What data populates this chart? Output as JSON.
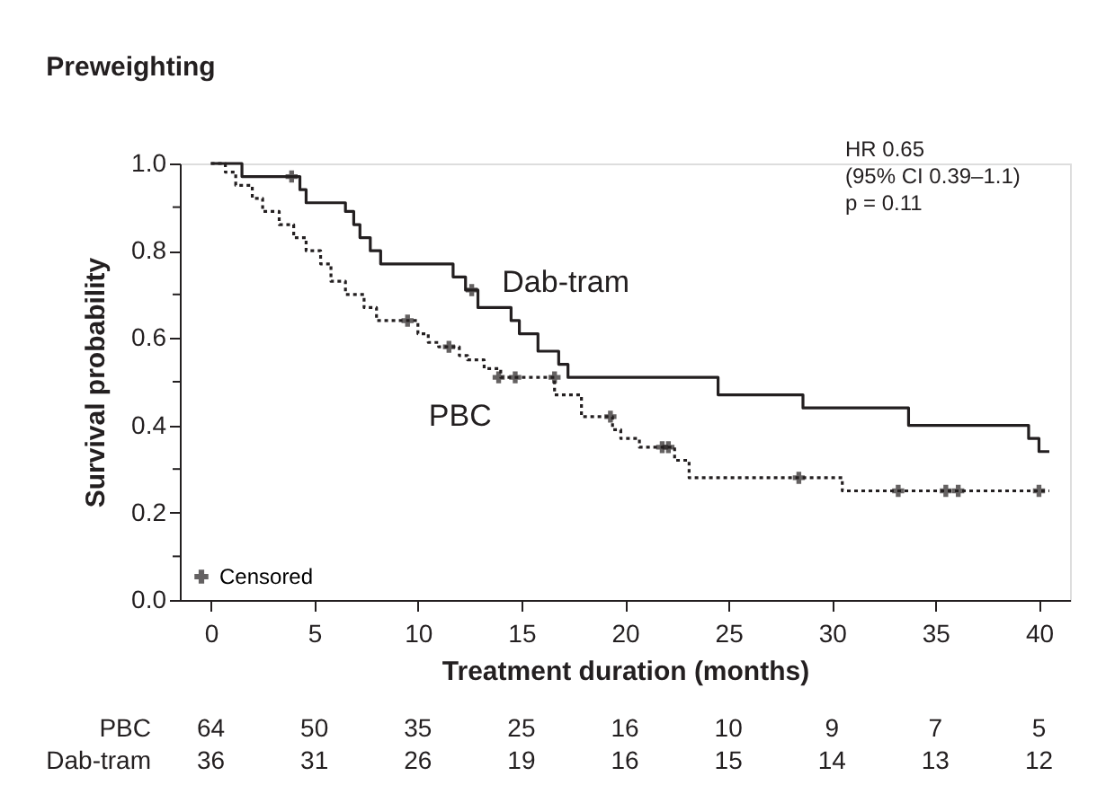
{
  "chart_data": {
    "type": "step",
    "title": "Preweighting",
    "xlabel": "Treatment duration (months)",
    "ylabel": "Survival probability",
    "xlim": [
      -1.5,
      41.5
    ],
    "xticks": [
      0,
      5,
      10,
      15,
      20,
      25,
      30,
      35,
      40
    ],
    "ylim": [
      0,
      1.0
    ],
    "yticks": [
      {
        "value": 0,
        "label": "0.0"
      },
      {
        "value": 0.1,
        "label": null
      },
      {
        "value": 0.2,
        "label": "0.2"
      },
      {
        "value": 0.3,
        "label": null
      },
      {
        "value": 0.4,
        "label": "0.4"
      },
      {
        "value": 0.5,
        "label": null
      },
      {
        "value": 0.6,
        "label": "0.6"
      },
      {
        "value": 0.7,
        "label": null
      },
      {
        "value": 0.8,
        "label": "0.8"
      },
      {
        "value": 0.9,
        "label": null
      },
      {
        "value": 1.0,
        "label": "1.0"
      }
    ],
    "grid": false,
    "legend": "bottom left",
    "series": [
      {
        "name": "Dab-tram",
        "color": "#231f20",
        "line_style": "solid",
        "x": [
          0,
          1.5,
          4.3,
          4.6,
          6.5,
          6.9,
          7.2,
          7.7,
          8.2,
          11.7,
          12.3,
          12.9,
          14.5,
          14.9,
          15.8,
          16.8,
          17.25,
          24.5,
          28.6,
          33.7,
          39.5,
          40.0,
          40.5
        ],
        "values": [
          1.0,
          0.97,
          0.94,
          0.91,
          0.89,
          0.86,
          0.83,
          0.8,
          0.77,
          0.74,
          0.71,
          0.67,
          0.64,
          0.61,
          0.57,
          0.54,
          0.51,
          0.47,
          0.44,
          0.4,
          0.37,
          0.34,
          0.34
        ]
      },
      {
        "name": "PBC",
        "color": "#231f20",
        "line_style": "dotted",
        "x": [
          0,
          0.7,
          1.2,
          2.0,
          2.5,
          3.3,
          4.0,
          4.6,
          5.3,
          5.8,
          6.5,
          7.4,
          8.0,
          10.0,
          10.5,
          11.0,
          12.0,
          12.4,
          13.2,
          14.0,
          16.6,
          17.9,
          19.4,
          19.8,
          20.7,
          22.4,
          23.1,
          30.5,
          40.5
        ],
        "values": [
          1.0,
          0.98,
          0.95,
          0.92,
          0.89,
          0.86,
          0.83,
          0.8,
          0.77,
          0.73,
          0.7,
          0.67,
          0.64,
          0.61,
          0.59,
          0.58,
          0.56,
          0.55,
          0.53,
          0.51,
          0.47,
          0.42,
          0.39,
          0.37,
          0.35,
          0.32,
          0.28,
          0.25,
          0.25
        ]
      },
      {
        "name": "Censored",
        "type": "scatter",
        "marker": "cross",
        "color": "#231f20",
        "x": [
          3.9,
          12.6,
          9.5,
          11.5,
          13.9,
          14.7,
          16.6,
          19.3,
          21.8,
          22.1,
          28.4,
          33.2,
          35.5,
          36.1,
          40.0
        ],
        "values": [
          0.97,
          0.71,
          0.64,
          0.58,
          0.51,
          0.51,
          0.51,
          0.42,
          0.35,
          0.35,
          0.28,
          0.25,
          0.25,
          0.25,
          0.25
        ]
      }
    ],
    "annotations": [
      "HR 0.65",
      "(95% CI 0.39–1.1)",
      "p = 0.11",
      "PBC 64 50 35 25 16 10 9 7 5",
      "Dab-tram 36 31 26 19 16 15 14 13 12"
    ]
  }
}
